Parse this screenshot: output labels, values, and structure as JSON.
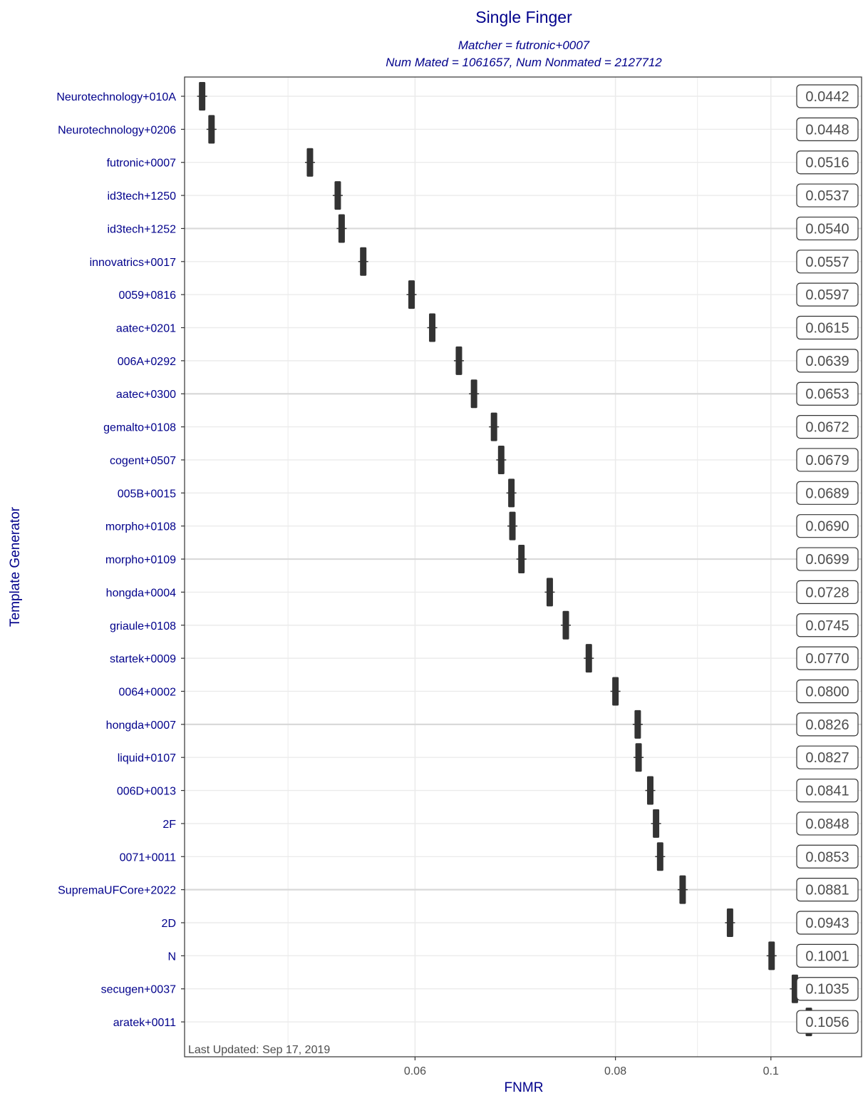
{
  "chart_data": {
    "type": "scatter",
    "title": "Single Finger",
    "subtitle_lines": [
      "Matcher = futronic+0007",
      "Num Mated = 1061657, Num Nonmated = 2127712"
    ],
    "xlabel": "FNMR",
    "ylabel": "Template Generator",
    "x_scale": "log",
    "x_ticks": [
      {
        "value": 0.06,
        "label": "0.06"
      },
      {
        "value": 0.08,
        "label": "0.08"
      },
      {
        "value": 0.1,
        "label": "0.1"
      }
    ],
    "x_minor_grid": [
      0.05,
      0.09
    ],
    "xlim": [
      0.0431,
      0.1139
    ],
    "grid": true,
    "footnote": "Last Updated: Sep 17, 2019",
    "categories": [
      "Neurotechnology+010A",
      "Neurotechnology+0206",
      "futronic+0007",
      "id3tech+1250",
      "id3tech+1252",
      "innovatrics+0017",
      "0059+0816",
      "aatec+0201",
      "006A+0292",
      "aatec+0300",
      "gemalto+0108",
      "cogent+0507",
      "005B+0015",
      "morpho+0108",
      "morpho+0109",
      "hongda+0004",
      "griaule+0108",
      "startek+0009",
      "0064+0002",
      "hongda+0007",
      "liquid+0107",
      "006D+0013",
      "2F",
      "0071+0011",
      "SupremaUFCore+2022",
      "2D",
      "N",
      "secugen+0037",
      "aratek+0011"
    ],
    "values": [
      0.0442,
      0.0448,
      0.0516,
      0.0537,
      0.054,
      0.0557,
      0.0597,
      0.0615,
      0.0639,
      0.0653,
      0.0672,
      0.0679,
      0.0689,
      0.069,
      0.0699,
      0.0728,
      0.0745,
      0.077,
      0.08,
      0.0826,
      0.0827,
      0.0841,
      0.0848,
      0.0853,
      0.0881,
      0.0943,
      0.1001,
      0.1035,
      0.1056
    ],
    "value_labels": [
      "0.0442",
      "0.0448",
      "0.0516",
      "0.0537",
      "0.0540",
      "0.0557",
      "0.0597",
      "0.0615",
      "0.0639",
      "0.0653",
      "0.0672",
      "0.0679",
      "0.0689",
      "0.0690",
      "0.0699",
      "0.0728",
      "0.0745",
      "0.0770",
      "0.0800",
      "0.0826",
      "0.0827",
      "0.0841",
      "0.0848",
      "0.0853",
      "0.0881",
      "0.0943",
      "0.1001",
      "0.1035",
      "0.1056"
    ],
    "highlighted_rows": [
      "id3tech+1252",
      "aatec+0300",
      "morpho+0109",
      "hongda+0007",
      "SupremaUFCore+2022"
    ],
    "colors": {
      "title": "#00008b",
      "category_labels": "#00008b",
      "marker": "#333333",
      "grid": "#ebebeb",
      "highlight_row": "#d9d9d9",
      "label_border": "#333333",
      "axis_tick_text": "#4d4d4d"
    }
  }
}
